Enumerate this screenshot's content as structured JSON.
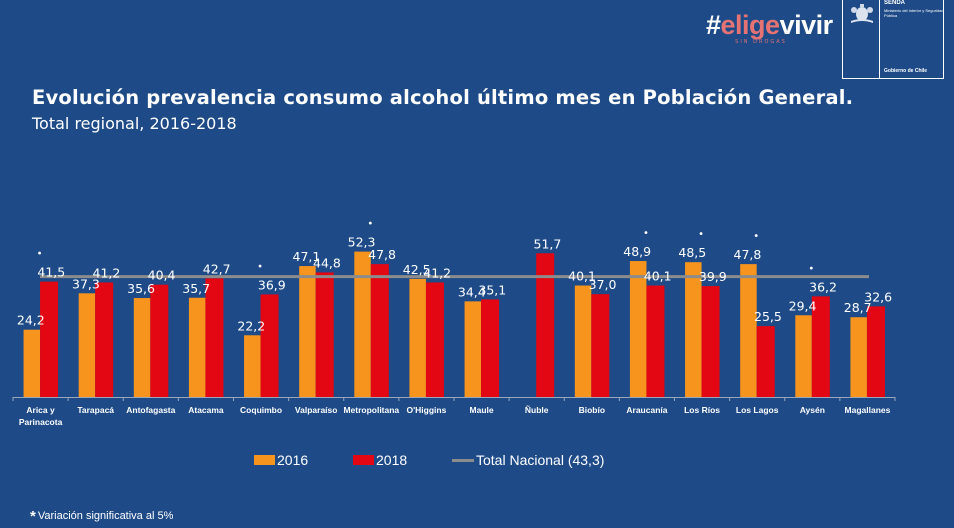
{
  "branding": {
    "hash": "#",
    "elige": "elige",
    "vivir": "vivir",
    "tagline": "SIN DROGAS",
    "agency": "SENDA",
    "ministry": "Ministerio del Interior y Seguridad Pública",
    "government": "Gobierno de Chile"
  },
  "colors": {
    "background": "#1e4b88",
    "series_2016": "#f7941d",
    "series_2018": "#e30613",
    "national_line": "#8c8c8c"
  },
  "footnote": {
    "star": "*",
    "text": "Variación significativa al 5%"
  },
  "chart_data": {
    "type": "bar",
    "title": "Evolución prevalencia consumo alcohol último mes en Población General.",
    "subtitle": "Total regional, 2016-2018",
    "xlabel": "",
    "ylabel": "",
    "ylim": [
      0,
      60
    ],
    "grid": false,
    "legend_position": "bottom",
    "categories": [
      "Arica y Parinacota",
      "Tarapacá",
      "Antofagasta",
      "Atacama",
      "Coquimbo",
      "Valparaíso",
      "Metropolitana",
      "O'Higgins",
      "Maule",
      "Ñuble",
      "Biobío",
      "Araucanía",
      "Los Ríos",
      "Los Lagos",
      "Aysén",
      "Magallanes"
    ],
    "series": [
      {
        "name": "2016",
        "values": [
          24.2,
          37.3,
          35.6,
          35.7,
          22.2,
          47.1,
          52.3,
          42.5,
          34.4,
          null,
          40.1,
          48.9,
          48.5,
          47.8,
          29.4,
          28.7
        ],
        "labels": [
          "24,2",
          "37,3",
          "35,6",
          "35,7",
          "22,2",
          "47,1",
          "52,3",
          "42,5",
          "34,4",
          "",
          "40,1",
          "48,9",
          "48,5",
          "47,8",
          "29,4",
          "28,7"
        ]
      },
      {
        "name": "2018",
        "values": [
          41.5,
          41.2,
          40.4,
          42.7,
          36.9,
          44.8,
          47.8,
          41.2,
          35.1,
          51.7,
          37.0,
          40.1,
          39.9,
          25.5,
          36.2,
          32.6
        ],
        "labels": [
          "41,5",
          "41,2",
          "40,4",
          "42,7",
          "36,9",
          "44,8",
          "47,8",
          "41,2",
          "35,1",
          "51,7",
          "37,0",
          "40,1",
          "39,9",
          "25,5",
          "36,2",
          "32,6"
        ]
      }
    ],
    "reference_line": {
      "name": "Total Nacional (43,3)",
      "value": 43.3
    },
    "significant": [
      true,
      false,
      false,
      false,
      true,
      false,
      true,
      false,
      false,
      false,
      false,
      true,
      true,
      true,
      true,
      false
    ],
    "significance_marker": "•"
  }
}
